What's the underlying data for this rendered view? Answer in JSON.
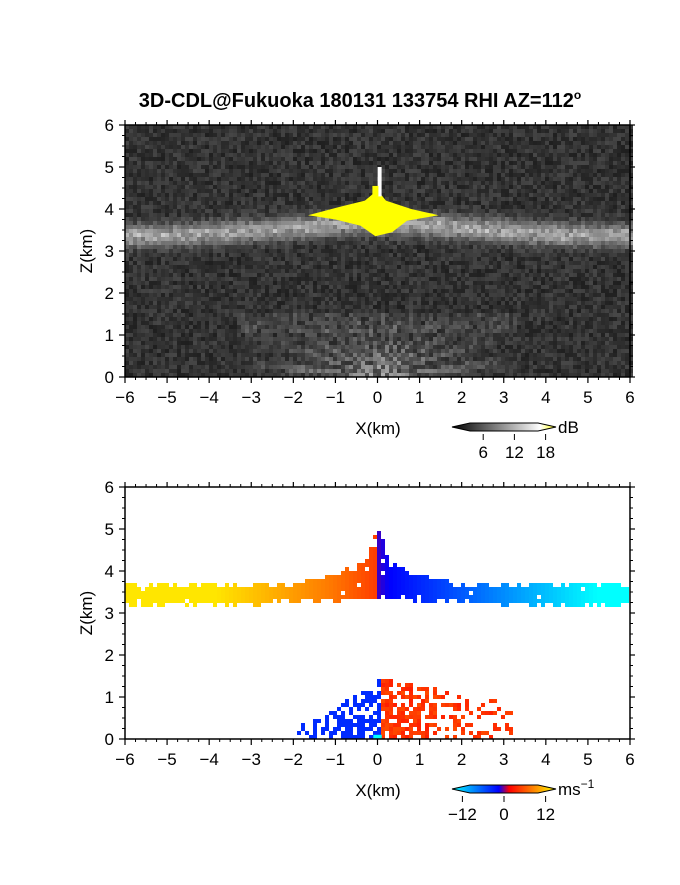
{
  "title": "3D-CDL@Fukuoka 180131 133754 RHI AZ=112",
  "title_suffix": "o",
  "chart_data": [
    {
      "type": "heatmap",
      "panel": "reflectivity",
      "xlabel": "X(km)",
      "ylabel": "Z(km)",
      "xlim": [
        -6,
        6
      ],
      "ylim": [
        0,
        6
      ],
      "x_ticks": [
        "−6",
        "−5",
        "−4",
        "−3",
        "−2",
        "−1",
        "0",
        "1",
        "2",
        "3",
        "4",
        "5",
        "6"
      ],
      "y_ticks": [
        "0",
        "1",
        "2",
        "3",
        "4",
        "5",
        "6"
      ],
      "colorbar": {
        "unit": "dB",
        "ticks": [
          "6",
          "12",
          "18"
        ],
        "tick_values": [
          6,
          12,
          18
        ],
        "range": [
          0,
          20
        ],
        "colors": [
          "#000000",
          "#ffffff",
          "#ffff00"
        ]
      },
      "features": {
        "layer_band_z": [
          3.1,
          3.6
        ],
        "bright_core_x": [
          -1.6,
          1.4
        ],
        "bright_core_z": [
          3.35,
          4.25
        ],
        "spike_top_z": 5.0,
        "ground_fan_top_z": 1.5
      }
    },
    {
      "type": "heatmap",
      "panel": "doppler_velocity",
      "xlabel": "X(km)",
      "ylabel": "Z(km)",
      "xlim": [
        -6,
        6
      ],
      "ylim": [
        0,
        6
      ],
      "x_ticks": [
        "−6",
        "−5",
        "−4",
        "−3",
        "−2",
        "−1",
        "0",
        "1",
        "2",
        "3",
        "4",
        "5",
        "6"
      ],
      "y_ticks": [
        "0",
        "1",
        "2",
        "3",
        "4",
        "5",
        "6"
      ],
      "colorbar": {
        "unit": "ms",
        "unit_sup": "−1",
        "ticks": [
          "−12",
          "0",
          "12"
        ],
        "tick_values": [
          -12,
          0,
          12
        ],
        "range": [
          -15,
          15
        ],
        "colors": [
          "#00ffff",
          "#0000ff",
          "#ff0000",
          "#ffff00"
        ]
      },
      "features": {
        "layer_band_z": [
          3.15,
          3.95
        ],
        "layer_x": [
          -6.0,
          6.0
        ],
        "sign_change_x": 0.0,
        "top_z": 5.0,
        "low_echo_x": [
          -2.0,
          3.2
        ],
        "low_echo_top_z": 1.5
      }
    }
  ]
}
